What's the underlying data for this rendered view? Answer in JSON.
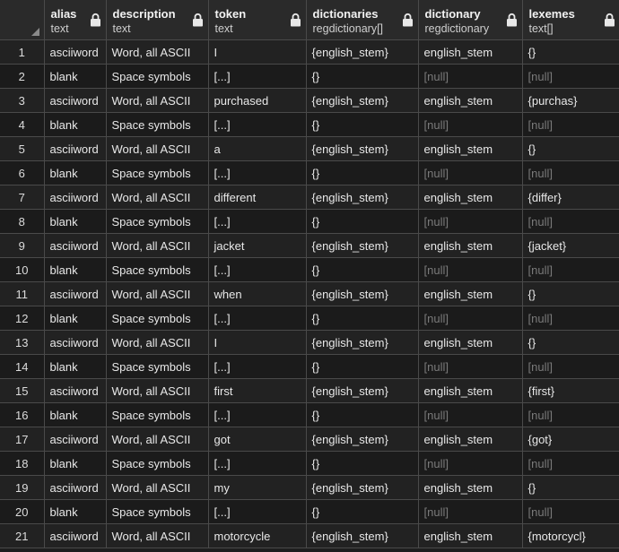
{
  "columns": [
    {
      "name": "alias",
      "type": "text"
    },
    {
      "name": "description",
      "type": "text"
    },
    {
      "name": "token",
      "type": "text"
    },
    {
      "name": "dictionaries",
      "type": "regdictionary[]"
    },
    {
      "name": "dictionary",
      "type": "regdictionary"
    },
    {
      "name": "lexemes",
      "type": "text[]"
    }
  ],
  "rows": [
    {
      "n": "1",
      "alias": "asciiword",
      "description": "Word, all ASCII",
      "token": "I",
      "dictionaries": "{english_stem}",
      "dictionary": "english_stem",
      "lexemes": "{}"
    },
    {
      "n": "2",
      "alias": "blank",
      "description": "Space symbols",
      "token": "[...]",
      "dictionaries": "{}",
      "dictionary": "[null]",
      "lexemes": "[null]"
    },
    {
      "n": "3",
      "alias": "asciiword",
      "description": "Word, all ASCII",
      "token": "purchased",
      "dictionaries": "{english_stem}",
      "dictionary": "english_stem",
      "lexemes": "{purchas}"
    },
    {
      "n": "4",
      "alias": "blank",
      "description": "Space symbols",
      "token": "[...]",
      "dictionaries": "{}",
      "dictionary": "[null]",
      "lexemes": "[null]"
    },
    {
      "n": "5",
      "alias": "asciiword",
      "description": "Word, all ASCII",
      "token": "a",
      "dictionaries": "{english_stem}",
      "dictionary": "english_stem",
      "lexemes": "{}"
    },
    {
      "n": "6",
      "alias": "blank",
      "description": "Space symbols",
      "token": "[...]",
      "dictionaries": "{}",
      "dictionary": "[null]",
      "lexemes": "[null]"
    },
    {
      "n": "7",
      "alias": "asciiword",
      "description": "Word, all ASCII",
      "token": "different",
      "dictionaries": "{english_stem}",
      "dictionary": "english_stem",
      "lexemes": "{differ}"
    },
    {
      "n": "8",
      "alias": "blank",
      "description": "Space symbols",
      "token": "[...]",
      "dictionaries": "{}",
      "dictionary": "[null]",
      "lexemes": "[null]"
    },
    {
      "n": "9",
      "alias": "asciiword",
      "description": "Word, all ASCII",
      "token": "jacket",
      "dictionaries": "{english_stem}",
      "dictionary": "english_stem",
      "lexemes": "{jacket}"
    },
    {
      "n": "10",
      "alias": "blank",
      "description": "Space symbols",
      "token": "[...]",
      "dictionaries": "{}",
      "dictionary": "[null]",
      "lexemes": "[null]"
    },
    {
      "n": "11",
      "alias": "asciiword",
      "description": "Word, all ASCII",
      "token": "when",
      "dictionaries": "{english_stem}",
      "dictionary": "english_stem",
      "lexemes": "{}"
    },
    {
      "n": "12",
      "alias": "blank",
      "description": "Space symbols",
      "token": "[...]",
      "dictionaries": "{}",
      "dictionary": "[null]",
      "lexemes": "[null]"
    },
    {
      "n": "13",
      "alias": "asciiword",
      "description": "Word, all ASCII",
      "token": "I",
      "dictionaries": "{english_stem}",
      "dictionary": "english_stem",
      "lexemes": "{}"
    },
    {
      "n": "14",
      "alias": "blank",
      "description": "Space symbols",
      "token": "[...]",
      "dictionaries": "{}",
      "dictionary": "[null]",
      "lexemes": "[null]"
    },
    {
      "n": "15",
      "alias": "asciiword",
      "description": "Word, all ASCII",
      "token": "first",
      "dictionaries": "{english_stem}",
      "dictionary": "english_stem",
      "lexemes": "{first}"
    },
    {
      "n": "16",
      "alias": "blank",
      "description": "Space symbols",
      "token": "[...]",
      "dictionaries": "{}",
      "dictionary": "[null]",
      "lexemes": "[null]"
    },
    {
      "n": "17",
      "alias": "asciiword",
      "description": "Word, all ASCII",
      "token": "got",
      "dictionaries": "{english_stem}",
      "dictionary": "english_stem",
      "lexemes": "{got}"
    },
    {
      "n": "18",
      "alias": "blank",
      "description": "Space symbols",
      "token": "[...]",
      "dictionaries": "{}",
      "dictionary": "[null]",
      "lexemes": "[null]"
    },
    {
      "n": "19",
      "alias": "asciiword",
      "description": "Word, all ASCII",
      "token": "my",
      "dictionaries": "{english_stem}",
      "dictionary": "english_stem",
      "lexemes": "{}"
    },
    {
      "n": "20",
      "alias": "blank",
      "description": "Space symbols",
      "token": "[...]",
      "dictionaries": "{}",
      "dictionary": "[null]",
      "lexemes": "[null]"
    },
    {
      "n": "21",
      "alias": "asciiword",
      "description": "Word, all ASCII",
      "token": "motorcycle",
      "dictionaries": "{english_stem}",
      "dictionary": "english_stem",
      "lexemes": "{motorcycl}"
    }
  ],
  "icons": {
    "lock": "lock-icon",
    "corner": "select-all-corner-icon"
  },
  "colors": {
    "background": "#1e1e1e",
    "header": "#2a2a2a",
    "grid_line": "#4a4a4a",
    "null_text": "#7a7a7a"
  }
}
